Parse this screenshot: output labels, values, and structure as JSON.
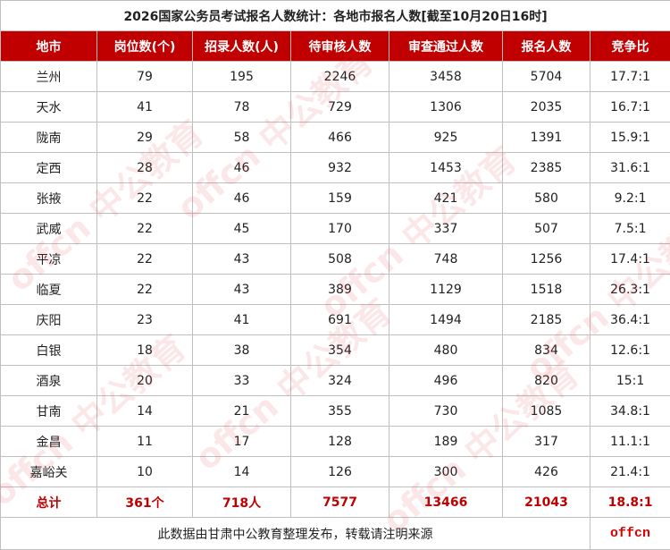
{
  "title": "2026国家公务员考试报名人数统计：各地市报名人数[截至10月20日16时]",
  "table": {
    "header": [
      "地市",
      "岗位数(个)",
      "招录人数(人)",
      "待审核人数",
      "审查通过人数",
      "报名人数",
      "竞争比"
    ],
    "rows": [
      [
        "兰州",
        "79",
        "195",
        "2246",
        "3458",
        "5704",
        "17.7:1"
      ],
      [
        "天水",
        "41",
        "78",
        "729",
        "1306",
        "2035",
        "16.7:1"
      ],
      [
        "陇南",
        "29",
        "58",
        "466",
        "925",
        "1391",
        "15.9:1"
      ],
      [
        "定西",
        "28",
        "46",
        "932",
        "1453",
        "2385",
        "31.6:1"
      ],
      [
        "张掖",
        "22",
        "46",
        "159",
        "421",
        "580",
        "9.2:1"
      ],
      [
        "武威",
        "22",
        "45",
        "170",
        "337",
        "507",
        "7.5:1"
      ],
      [
        "平凉",
        "22",
        "43",
        "508",
        "748",
        "1256",
        "17.4:1"
      ],
      [
        "临夏",
        "22",
        "43",
        "389",
        "1129",
        "1518",
        "26.3:1"
      ],
      [
        "庆阳",
        "23",
        "41",
        "691",
        "1494",
        "2185",
        "36.4:1"
      ],
      [
        "白银",
        "18",
        "38",
        "354",
        "480",
        "834",
        "12.6:1"
      ],
      [
        "酒泉",
        "20",
        "33",
        "324",
        "496",
        "820",
        "15:1"
      ],
      [
        "甘南",
        "14",
        "21",
        "355",
        "730",
        "1085",
        "34.8:1"
      ],
      [
        "金昌",
        "11",
        "17",
        "128",
        "189",
        "317",
        "11.1:1"
      ],
      [
        "嘉峪关",
        "10",
        "14",
        "126",
        "300",
        "426",
        "21.4:1"
      ]
    ],
    "total": [
      "总计",
      "361个",
      "718人",
      "7577",
      "13466",
      "21043",
      "18.8:1"
    ]
  },
  "footer": {
    "note": "此数据由甘肃中公教育整理发布，转载请注明来源",
    "logo": "offcn"
  },
  "watermark": "offcn 中公教育"
}
